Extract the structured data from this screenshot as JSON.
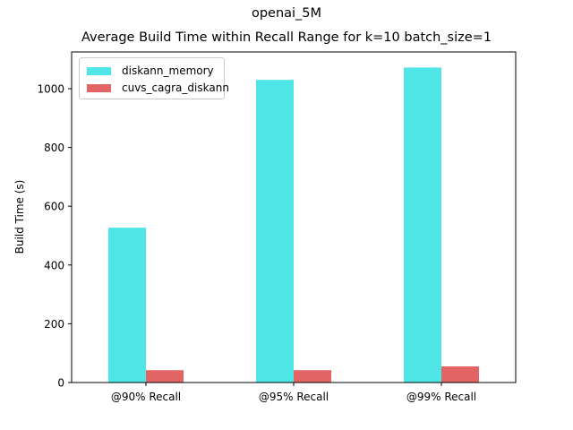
{
  "suptitle": "openai_5M",
  "chart_data": {
    "type": "bar",
    "title": "Average Build Time within Recall Range for k=10 batch_size=1",
    "xlabel": "",
    "ylabel": "Build Time (s)",
    "categories": [
      "@90% Recall",
      "@95% Recall",
      "@99% Recall"
    ],
    "series": [
      {
        "name": "diskann_memory",
        "color": "#4ee6e6",
        "values": [
          527,
          1030,
          1072
        ]
      },
      {
        "name": "cuvs_cagra_diskann",
        "color": "#e36464",
        "values": [
          42,
          42,
          55
        ]
      }
    ],
    "ylim": [
      0,
      1125
    ],
    "yticks": [
      0,
      200,
      400,
      600,
      800,
      1000
    ],
    "grid": false,
    "legend_position": "top-left"
  }
}
